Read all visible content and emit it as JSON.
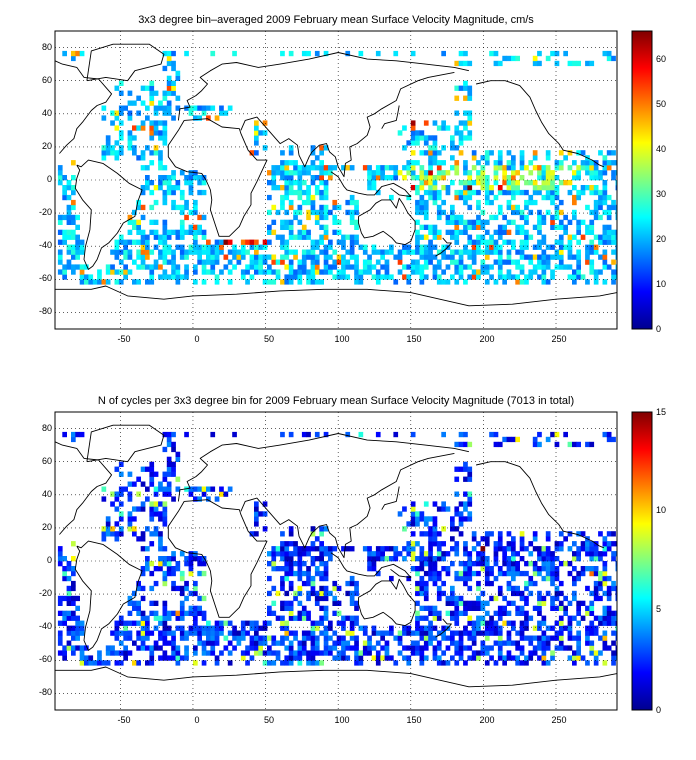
{
  "maps": [
    {
      "title": "3x3 degree bin–averaged 2009 February mean Surface Velocity Magnitude, cm/s",
      "xticks": [
        "-50",
        "0",
        "50",
        "100",
        "150",
        "200",
        "250"
      ],
      "yticks": [
        "80",
        "60",
        "40",
        "20",
        "0",
        "-20",
        "-40",
        "-60",
        "-80"
      ],
      "colorbar_ticks": [
        "60",
        "50",
        "40",
        "30",
        "20",
        "10",
        "0"
      ]
    },
    {
      "title": "N of cycles per 3x3 degree bin for 2009 February mean Surface Velocity Magnitude (7013 in total)",
      "xticks": [
        "-50",
        "0",
        "50",
        "100",
        "150",
        "200",
        "250"
      ],
      "yticks": [
        "80",
        "60",
        "40",
        "20",
        "0",
        "-20",
        "-40",
        "-60",
        "-80"
      ],
      "colorbar_ticks": [
        "15",
        "10",
        "5",
        "0"
      ]
    }
  ],
  "chart_data": [
    {
      "type": "heatmap",
      "title": "3x3 degree bin–averaged 2009 February mean Surface Velocity Magnitude, cm/s",
      "xlim": [
        -95,
        292
      ],
      "ylim": [
        -90,
        90
      ],
      "bin_size_deg": 3,
      "colormap": "jet",
      "clim": [
        0,
        66
      ],
      "colorbar_ticks": [
        0,
        10,
        20,
        30,
        40,
        50,
        60
      ],
      "grid": true
    },
    {
      "type": "heatmap",
      "title": "N of cycles per 3x3 degree bin for 2009 February mean Surface Velocity Magnitude (7013 in total)",
      "xlim": [
        -95,
        292
      ],
      "ylim": [
        -90,
        90
      ],
      "bin_size_deg": 3,
      "colormap": "jet",
      "clim": [
        0,
        15
      ],
      "colorbar_ticks": [
        0,
        5,
        10,
        15
      ],
      "total_cycles": 7013,
      "grid": true
    }
  ]
}
